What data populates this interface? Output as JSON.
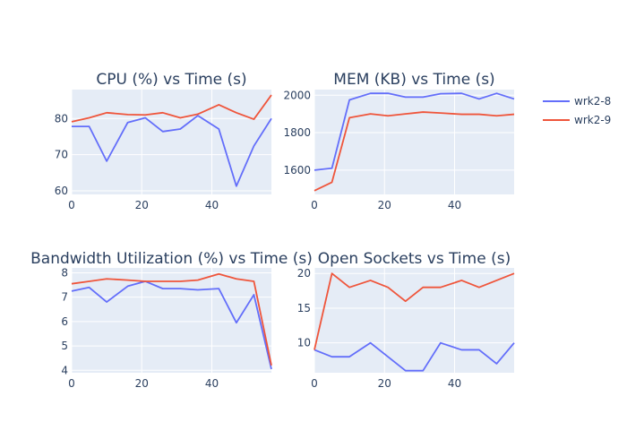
{
  "chart_data": [
    {
      "type": "line",
      "title": "CPU (%) vs Time (s)",
      "xlim": [
        0,
        57
      ],
      "ylim": [
        59,
        88
      ],
      "xticks": [
        0,
        20,
        40
      ],
      "yticks": [
        60,
        70,
        80
      ],
      "x": [
        0,
        5,
        10,
        16,
        21,
        26,
        31,
        36,
        42,
        47,
        52,
        57
      ],
      "series": [
        {
          "name": "wrk2-8",
          "values": [
            77.8,
            77.8,
            68.2,
            78.9,
            80.2,
            76.4,
            77.1,
            80.8,
            77.1,
            61.3,
            72.4,
            80.0
          ]
        },
        {
          "name": "wrk2-9",
          "values": [
            79.1,
            80.2,
            81.6,
            81.1,
            81.0,
            81.6,
            80.2,
            81.2,
            83.8,
            81.6,
            79.8,
            86.5
          ]
        }
      ]
    },
    {
      "type": "line",
      "title": "MEM (KB) vs Time (s)",
      "xlim": [
        0,
        57
      ],
      "ylim": [
        1470,
        2030
      ],
      "xticks": [
        0,
        20,
        40
      ],
      "yticks": [
        1600,
        1800,
        2000
      ],
      "x": [
        0,
        5,
        10,
        16,
        21,
        26,
        31,
        36,
        42,
        47,
        52,
        57
      ],
      "series": [
        {
          "name": "wrk2-8",
          "values": [
            1600,
            1610,
            1975,
            2010,
            2010,
            1990,
            1990,
            2008,
            2010,
            1980,
            2010,
            1980
          ]
        },
        {
          "name": "wrk2-9",
          "values": [
            1490,
            1535,
            1880,
            1900,
            1890,
            1900,
            1910,
            1905,
            1898,
            1898,
            1890,
            1898
          ]
        }
      ]
    },
    {
      "type": "line",
      "title": "Bandwidth Utilization (%) vs Time (s)",
      "xlim": [
        0,
        57
      ],
      "ylim": [
        3.9,
        8.2
      ],
      "xticks": [
        0,
        20,
        40
      ],
      "yticks": [
        4,
        5,
        6,
        7,
        8
      ],
      "x": [
        0,
        5,
        10,
        16,
        21,
        26,
        31,
        36,
        42,
        47,
        52,
        57
      ],
      "series": [
        {
          "name": "wrk2-8",
          "values": [
            7.25,
            7.4,
            6.8,
            7.45,
            7.65,
            7.35,
            7.35,
            7.3,
            7.35,
            5.95,
            7.1,
            4.05
          ]
        },
        {
          "name": "wrk2-9",
          "values": [
            7.55,
            7.65,
            7.75,
            7.7,
            7.65,
            7.65,
            7.65,
            7.7,
            7.95,
            7.75,
            7.65,
            4.2
          ]
        }
      ]
    },
    {
      "type": "line",
      "title": "Open Sockets vs Time (s)",
      "xlim": [
        0,
        57
      ],
      "ylim": [
        5.7,
        20.8
      ],
      "xticks": [
        0,
        20,
        40
      ],
      "yticks": [
        10,
        15,
        20
      ],
      "x": [
        0,
        5,
        10,
        16,
        21,
        26,
        31,
        36,
        42,
        47,
        52,
        57
      ],
      "series": [
        {
          "name": "wrk2-8",
          "values": [
            9,
            8,
            8,
            10,
            8,
            6,
            6,
            10,
            9,
            9,
            7,
            10
          ]
        },
        {
          "name": "wrk2-9",
          "values": [
            9,
            20,
            18,
            19,
            18,
            16,
            18,
            18,
            19,
            18,
            19,
            20
          ]
        }
      ]
    }
  ],
  "legend": {
    "placement": "top-right",
    "items": [
      {
        "label": "wrk2-8",
        "color": "#636efa"
      },
      {
        "label": "wrk2-9",
        "color": "#ef553b"
      }
    ]
  },
  "colors": {
    "plot_background": "#e5ecf6",
    "grid": "#ffffff",
    "text": "#2a3f5f"
  }
}
